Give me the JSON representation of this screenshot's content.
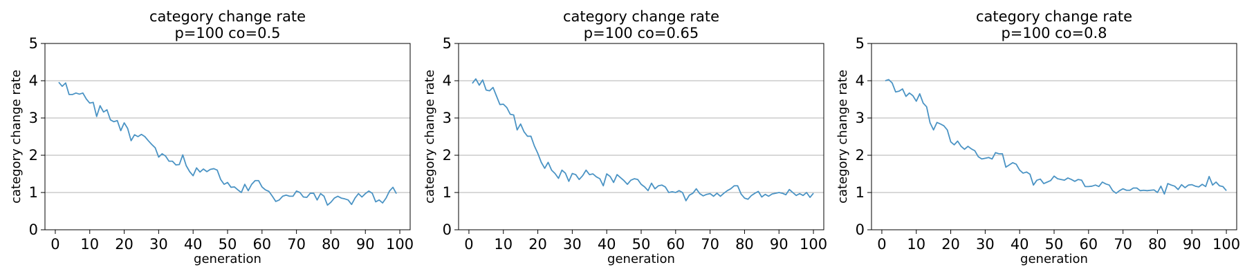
{
  "chart_data": [
    {
      "type": "line",
      "title": "category change rate",
      "subtitle": "p=100 co=0.5",
      "xlabel": "generation",
      "ylabel": "category change rate",
      "xlim": [
        -3,
        103
      ],
      "ylim": [
        0,
        5
      ],
      "xticks": [
        "0",
        "10",
        "20",
        "30",
        "40",
        "50",
        "60",
        "70",
        "80",
        "90",
        "100"
      ],
      "yticks": [
        "0",
        "1",
        "2",
        "3",
        "4",
        "5"
      ],
      "grid": "horizontal",
      "line_color": "#4a93c4",
      "x_start": 1,
      "series": [
        {
          "values": [
            3.96,
            3.85,
            3.94,
            3.63,
            3.63,
            3.67,
            3.64,
            3.67,
            3.51,
            3.4,
            3.42,
            3.04,
            3.33,
            3.16,
            3.22,
            2.95,
            2.9,
            2.93,
            2.66,
            2.87,
            2.72,
            2.39,
            2.55,
            2.5,
            2.56,
            2.5,
            2.39,
            2.29,
            2.2,
            1.95,
            2.04,
            1.98,
            1.84,
            1.84,
            1.74,
            1.75,
            2.01,
            1.72,
            1.56,
            1.45,
            1.66,
            1.55,
            1.63,
            1.56,
            1.62,
            1.64,
            1.6,
            1.35,
            1.22,
            1.27,
            1.14,
            1.15,
            1.07,
            1.0,
            1.22,
            1.05,
            1.22,
            1.32,
            1.32,
            1.15,
            1.07,
            1.03,
            0.9,
            0.76,
            0.8,
            0.9,
            0.93,
            0.9,
            0.9,
            1.04,
            1.0,
            0.88,
            0.87,
            0.98,
            0.98,
            0.8,
            0.97,
            0.9,
            0.66,
            0.74,
            0.85,
            0.9,
            0.85,
            0.83,
            0.8,
            0.68,
            0.85,
            0.97,
            0.88,
            0.97,
            1.04,
            0.98,
            0.75,
            0.8,
            0.72,
            0.85,
            1.04,
            1.14,
            0.97
          ]
        }
      ]
    },
    {
      "type": "line",
      "title": "category change rate",
      "subtitle": "p=100 co=0.65",
      "xlabel": "generation",
      "ylabel": "category change rate",
      "xlim": [
        -3,
        103
      ],
      "ylim": [
        0,
        5
      ],
      "xticks": [
        "0",
        "10",
        "20",
        "30",
        "40",
        "50",
        "60",
        "70",
        "80",
        "90",
        "100"
      ],
      "yticks": [
        "0",
        "1",
        "2",
        "3",
        "4",
        "5"
      ],
      "grid": "horizontal",
      "line_color": "#4a93c4",
      "x_start": 1,
      "series": [
        {
          "values": [
            3.93,
            4.05,
            3.88,
            4.02,
            3.75,
            3.73,
            3.82,
            3.59,
            3.36,
            3.37,
            3.28,
            3.1,
            3.08,
            2.68,
            2.84,
            2.63,
            2.51,
            2.51,
            2.25,
            2.05,
            1.81,
            1.65,
            1.81,
            1.6,
            1.51,
            1.38,
            1.6,
            1.52,
            1.3,
            1.51,
            1.48,
            1.35,
            1.45,
            1.6,
            1.48,
            1.5,
            1.42,
            1.37,
            1.18,
            1.5,
            1.43,
            1.27,
            1.48,
            1.4,
            1.32,
            1.22,
            1.33,
            1.37,
            1.35,
            1.22,
            1.15,
            1.05,
            1.25,
            1.1,
            1.18,
            1.2,
            1.15,
            1.0,
            1.02,
            1.0,
            1.05,
            1.0,
            0.78,
            0.93,
            0.98,
            1.1,
            0.97,
            0.91,
            0.95,
            0.97,
            0.9,
            0.98,
            0.9,
            0.98,
            1.05,
            1.1,
            1.18,
            1.18,
            0.96,
            0.85,
            0.82,
            0.92,
            0.98,
            1.03,
            0.88,
            0.95,
            0.9,
            0.96,
            0.98,
            1.0,
            0.98,
            0.94,
            1.08,
            1.0,
            0.92,
            0.97,
            0.92,
            1.0,
            0.87,
            0.98
          ]
        }
      ]
    },
    {
      "type": "line",
      "title": "category change rate",
      "subtitle": "p=100 co=0.8",
      "xlabel": "generation",
      "ylabel": "category change rate",
      "xlim": [
        -3,
        103
      ],
      "ylim": [
        0,
        5
      ],
      "xticks": [
        "0",
        "10",
        "20",
        "30",
        "40",
        "50",
        "60",
        "70",
        "80",
        "90",
        "100"
      ],
      "yticks": [
        "0",
        "1",
        "2",
        "3",
        "4",
        "5"
      ],
      "grid": "horizontal",
      "line_color": "#4a93c4",
      "x_start": 1,
      "series": [
        {
          "values": [
            4.0,
            4.03,
            3.94,
            3.7,
            3.72,
            3.78,
            3.58,
            3.67,
            3.6,
            3.45,
            3.65,
            3.4,
            3.3,
            2.87,
            2.68,
            2.88,
            2.84,
            2.79,
            2.68,
            2.36,
            2.28,
            2.38,
            2.24,
            2.16,
            2.24,
            2.17,
            2.12,
            1.96,
            1.9,
            1.92,
            1.94,
            1.9,
            2.07,
            2.04,
            2.04,
            1.68,
            1.74,
            1.8,
            1.76,
            1.6,
            1.52,
            1.55,
            1.49,
            1.2,
            1.33,
            1.36,
            1.24,
            1.28,
            1.32,
            1.44,
            1.37,
            1.35,
            1.33,
            1.39,
            1.35,
            1.3,
            1.35,
            1.33,
            1.16,
            1.16,
            1.17,
            1.2,
            1.16,
            1.28,
            1.23,
            1.2,
            1.05,
            0.98,
            1.05,
            1.1,
            1.06,
            1.06,
            1.12,
            1.12,
            1.05,
            1.06,
            1.05,
            1.06,
            1.07,
            1.0,
            1.17,
            0.96,
            1.24,
            1.2,
            1.17,
            1.08,
            1.21,
            1.13,
            1.2,
            1.21,
            1.17,
            1.15,
            1.22,
            1.16,
            1.43,
            1.2,
            1.28,
            1.18,
            1.16,
            1.05
          ]
        }
      ]
    }
  ]
}
